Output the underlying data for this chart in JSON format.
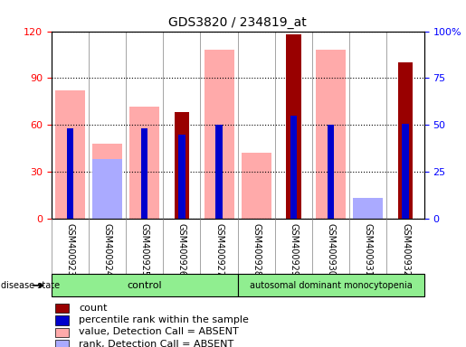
{
  "title": "GDS3820 / 234819_at",
  "samples": [
    "GSM400923",
    "GSM400924",
    "GSM400925",
    "GSM400926",
    "GSM400927",
    "GSM400928",
    "GSM400929",
    "GSM400930",
    "GSM400931",
    "GSM400932"
  ],
  "count": [
    0,
    0,
    0,
    68,
    0,
    0,
    118,
    0,
    0,
    100
  ],
  "percentile_rank": [
    58,
    0,
    58,
    54,
    60,
    0,
    66,
    60,
    0,
    61
  ],
  "value_absent": [
    82,
    48,
    72,
    0,
    108,
    42,
    0,
    108,
    8,
    0
  ],
  "rank_absent": [
    0,
    38,
    0,
    0,
    0,
    0,
    0,
    0,
    13,
    0
  ],
  "count_color": "#990000",
  "percentile_color": "#0000cc",
  "value_absent_color": "#ffaaaa",
  "rank_absent_color": "#aaaaff",
  "left_ylim": [
    0,
    120
  ],
  "right_ylim": [
    0,
    100
  ],
  "left_yticks": [
    0,
    30,
    60,
    90,
    120
  ],
  "right_yticks": [
    0,
    25,
    50,
    75,
    100
  ],
  "right_yticklabels": [
    "0",
    "25",
    "50",
    "75",
    "100%"
  ],
  "control_samples": 5,
  "control_label": "control",
  "disease_label": "autosomal dominant monocytopenia",
  "disease_state_label": "disease state",
  "legend_labels": [
    "count",
    "percentile rank within the sample",
    "value, Detection Call = ABSENT",
    "rank, Detection Call = ABSENT"
  ],
  "legend_colors": [
    "#990000",
    "#0000cc",
    "#ffaaaa",
    "#aaaaff"
  ],
  "bar_width": 0.4,
  "plot_bg_color": "#ffffff"
}
